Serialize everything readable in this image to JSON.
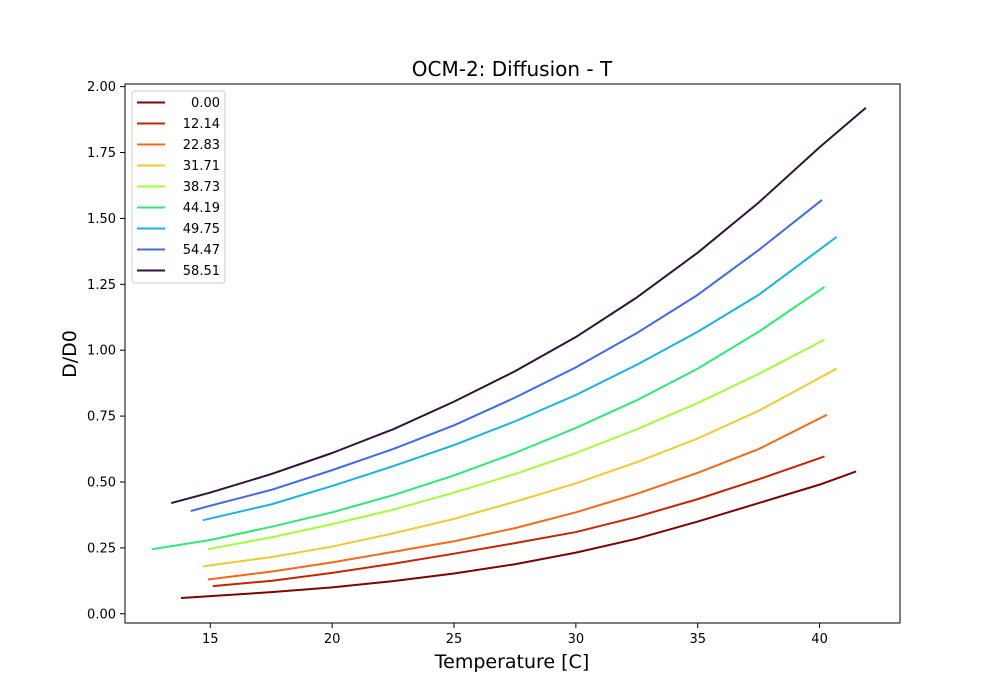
{
  "chart_data": {
    "type": "line",
    "title": "OCM-2: Diffusion - T",
    "xlabel": "Temperature [C]",
    "ylabel": "D/D0",
    "xlim": [
      11.5,
      43.3
    ],
    "ylim": [
      -0.035,
      2.01
    ],
    "xticks": [
      15,
      20,
      25,
      30,
      35,
      40
    ],
    "yticks": [
      0.0,
      0.25,
      0.5,
      0.75,
      1.0,
      1.25,
      1.5,
      1.75,
      2.0
    ],
    "ytick_labels": [
      "0.00",
      "0.25",
      "0.50",
      "0.75",
      "1.00",
      "1.25",
      "1.50",
      "1.75",
      "2.00"
    ],
    "grid": false,
    "legend_position": "upper-left",
    "series": [
      {
        "name": "0.00",
        "color": "#7a0403",
        "x": [
          13.8,
          15,
          17.5,
          20,
          22.5,
          25,
          27.5,
          30,
          32.5,
          35,
          37.5,
          40,
          41.5
        ],
        "y": [
          0.06,
          0.067,
          0.082,
          0.1,
          0.124,
          0.153,
          0.188,
          0.232,
          0.285,
          0.35,
          0.42,
          0.49,
          0.54
        ]
      },
      {
        "name": "12.14",
        "color": "#c42503",
        "x": [
          15.1,
          17.5,
          20,
          22.5,
          25,
          27.5,
          30,
          32.5,
          35,
          37.5,
          40.2
        ],
        "y": [
          0.105,
          0.125,
          0.155,
          0.19,
          0.228,
          0.268,
          0.31,
          0.368,
          0.435,
          0.51,
          0.597
        ]
      },
      {
        "name": "22.83",
        "color": "#f56918",
        "x": [
          14.9,
          17.5,
          20,
          22.5,
          25,
          27.5,
          30,
          32.5,
          35,
          37.5,
          40.3
        ],
        "y": [
          0.13,
          0.16,
          0.195,
          0.235,
          0.275,
          0.325,
          0.385,
          0.455,
          0.535,
          0.625,
          0.755
        ]
      },
      {
        "name": "31.71",
        "color": "#f0c934",
        "x": [
          14.7,
          17.5,
          20,
          22.5,
          25,
          27.5,
          30,
          32.5,
          35,
          37.5,
          40.7
        ],
        "y": [
          0.18,
          0.215,
          0.255,
          0.305,
          0.36,
          0.425,
          0.495,
          0.575,
          0.665,
          0.77,
          0.93
        ]
      },
      {
        "name": "38.73",
        "color": "#a4fc3c",
        "x": [
          14.9,
          17.5,
          20,
          22.5,
          25,
          27.5,
          30,
          32.5,
          35,
          37.5,
          40.2
        ],
        "y": [
          0.245,
          0.29,
          0.34,
          0.395,
          0.46,
          0.53,
          0.61,
          0.7,
          0.8,
          0.91,
          1.04
        ]
      },
      {
        "name": "44.19",
        "color": "#2ee878",
        "x": [
          12.6,
          15,
          17.5,
          20,
          22.5,
          25,
          27.5,
          30,
          32.5,
          35,
          37.5,
          40.2
        ],
        "y": [
          0.245,
          0.28,
          0.33,
          0.385,
          0.45,
          0.525,
          0.61,
          0.705,
          0.81,
          0.93,
          1.07,
          1.24
        ]
      },
      {
        "name": "49.75",
        "color": "#1ab1e3",
        "x": [
          14.7,
          17.5,
          20,
          22.5,
          25,
          27.5,
          30,
          32.5,
          35,
          37.5,
          40.7
        ],
        "y": [
          0.355,
          0.415,
          0.485,
          0.56,
          0.64,
          0.73,
          0.83,
          0.945,
          1.07,
          1.21,
          1.43
        ]
      },
      {
        "name": "54.47",
        "color": "#4069e3",
        "x": [
          14.2,
          15,
          17.5,
          20,
          22.5,
          25,
          27.5,
          30,
          32.5,
          35,
          37.5,
          40.1
        ],
        "y": [
          0.39,
          0.41,
          0.47,
          0.545,
          0.625,
          0.715,
          0.82,
          0.935,
          1.065,
          1.21,
          1.38,
          1.57
        ]
      },
      {
        "name": "58.51",
        "color": "#30123b",
        "x": [
          13.4,
          15,
          17.5,
          20,
          22.5,
          25,
          27.5,
          30,
          32.5,
          35,
          37.5,
          40,
          41.9
        ],
        "y": [
          0.42,
          0.46,
          0.53,
          0.61,
          0.7,
          0.805,
          0.92,
          1.05,
          1.2,
          1.37,
          1.56,
          1.77,
          1.92
        ]
      }
    ]
  }
}
